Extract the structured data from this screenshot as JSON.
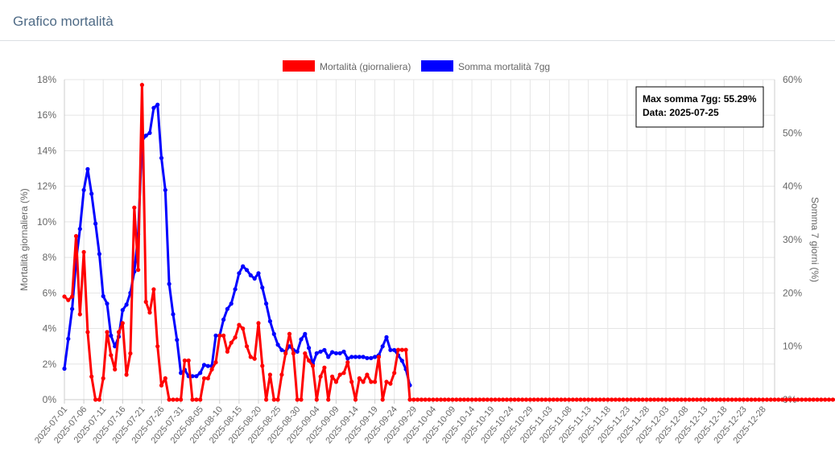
{
  "panel": {
    "title": "Grafico mortalità"
  },
  "chart_data": {
    "type": "line",
    "start_date": "2025-07-01",
    "end_date": "2025-12-31",
    "x_tick_labels": [
      "2025-07-01",
      "2025-07-06",
      "2025-07-11",
      "2025-07-16",
      "2025-07-21",
      "2025-07-26",
      "2025-07-31",
      "2025-08-05",
      "2025-08-10",
      "2025-08-15",
      "2025-08-20",
      "2025-08-25",
      "2025-08-30",
      "2025-09-04",
      "2025-09-09",
      "2025-09-14",
      "2025-09-19",
      "2025-09-24",
      "2025-09-29",
      "2025-10-04",
      "2025-10-09",
      "2025-10-14",
      "2025-10-19",
      "2025-10-24",
      "2025-10-29",
      "2025-11-03",
      "2025-11-08",
      "2025-11-13",
      "2025-11-18",
      "2025-11-23",
      "2025-11-28",
      "2025-12-03",
      "2025-12-08",
      "2025-12-13",
      "2025-12-18",
      "2025-12-23",
      "2025-12-28"
    ],
    "y_left": {
      "label": "Mortalità giornaliera (%)",
      "min": 0,
      "max": 18,
      "step": 2,
      "tick_suffix": "%"
    },
    "y_right": {
      "label": "Somma 7 giorni (%)",
      "min": 0,
      "max": 60,
      "step": 10,
      "tick_suffix": "%"
    },
    "grid": true,
    "legend_position": "top",
    "series": [
      {
        "name": "Mortalità (giornaliera)",
        "color": "#ff0000",
        "axis": "left",
        "values": [
          5.8,
          5.6,
          5.8,
          9.2,
          4.8,
          8.3,
          3.8,
          1.3,
          0,
          0,
          1.2,
          3.8,
          2.5,
          1.7,
          3.8,
          4.3,
          1.4,
          2.6,
          10.8,
          7.3,
          17.7,
          5.5,
          4.9,
          6.2,
          3.0,
          0.8,
          1.2,
          0,
          0,
          0,
          0,
          2.2,
          2.2,
          0,
          0,
          0,
          1.2,
          1.2,
          1.7,
          2.1,
          3.6,
          3.6,
          2.7,
          3.2,
          3.5,
          4.2,
          4.0,
          3.0,
          2.4,
          2.3,
          4.3,
          1.9,
          0,
          1.4,
          0,
          0,
          1.4,
          2.6,
          3.7,
          2.6,
          0,
          0,
          2.6,
          2.2,
          1.9,
          0,
          1.3,
          1.8,
          0,
          1.3,
          1.0,
          1.4,
          1.5,
          2.1,
          1.0,
          0,
          1.2,
          1.0,
          1.4,
          1.0,
          1.0,
          2.4,
          0,
          1.0,
          0.9,
          1.5,
          2.8,
          2.8,
          2.8,
          0,
          0,
          0,
          0,
          0,
          0,
          0,
          0,
          0,
          0,
          0,
          0,
          0,
          0,
          0,
          0,
          0,
          0,
          0,
          0,
          0,
          0,
          0,
          0,
          0,
          0,
          0,
          0,
          0,
          0,
          0,
          0,
          0,
          0,
          0,
          0,
          0,
          0,
          0,
          0,
          0,
          0,
          0,
          0,
          0,
          0,
          0,
          0,
          0,
          0,
          0,
          0,
          0,
          0,
          0,
          0,
          0,
          0,
          0,
          0,
          0,
          0,
          0,
          0,
          0,
          0,
          0,
          0,
          0,
          0,
          0,
          0,
          0,
          0,
          0,
          0,
          0,
          0,
          0,
          0,
          0,
          0,
          0,
          0,
          0,
          0,
          0,
          0,
          0,
          0,
          0,
          0,
          0,
          0,
          0,
          0,
          0,
          0,
          0,
          0,
          0,
          0,
          0,
          0,
          0,
          0,
          0,
          0,
          0,
          0,
          0
        ]
      },
      {
        "name": "Somma mortalità 7gg",
        "color": "#0000ff",
        "axis": "right",
        "values": [
          5.8,
          11.4,
          17.0,
          26.0,
          32.0,
          39.3,
          43.2,
          38.6,
          33.0,
          27.3,
          19.4,
          18.0,
          12.0,
          10.0,
          11.8,
          16.8,
          17.8,
          20.0,
          24.0,
          31.0,
          48.5,
          49.5,
          50.0,
          54.7,
          55.29,
          45.3,
          39.3,
          21.7,
          16.0,
          11.2,
          5.0,
          5.6,
          4.4,
          4.4,
          4.4,
          5.0,
          6.5,
          6.3,
          6.3,
          12.0,
          12.0,
          15.0,
          17.0,
          18.0,
          20.7,
          23.7,
          25.0,
          24.3,
          23.3,
          22.7,
          23.7,
          21.0,
          18.0,
          14.7,
          12.3,
          10.3,
          9.3,
          9.0,
          10.0,
          9.3,
          9.0,
          11.3,
          12.3,
          9.7,
          6.7,
          8.7,
          9.0,
          9.3,
          8.0,
          8.9,
          8.7,
          8.7,
          9.0,
          7.7,
          8.0,
          8.0,
          8.0,
          8.0,
          7.8,
          7.8,
          8.0,
          8.3,
          10.0,
          11.7,
          9.3,
          9.3,
          8.3,
          7.3,
          5.7,
          2.7,
          0,
          0,
          0,
          0,
          0,
          0,
          0,
          0,
          0,
          0,
          0,
          0,
          0,
          0,
          0,
          0,
          0,
          0,
          0,
          0,
          0,
          0,
          0,
          0,
          0,
          0,
          0,
          0,
          0,
          0,
          0,
          0,
          0,
          0,
          0,
          0,
          0,
          0,
          0,
          0,
          0,
          0,
          0,
          0,
          0,
          0,
          0,
          0,
          0,
          0,
          0,
          0,
          0,
          0,
          0,
          0,
          0,
          0,
          0,
          0,
          0,
          0,
          0,
          0,
          0,
          0,
          0,
          0,
          0,
          0,
          0,
          0,
          0,
          0,
          0,
          0,
          0,
          0,
          0,
          0,
          0,
          0,
          0,
          0,
          0,
          0,
          0,
          0,
          0,
          0,
          0,
          0,
          0,
          0,
          0,
          0,
          0,
          0,
          0,
          0,
          0,
          0,
          0,
          0,
          0,
          0
        ],
        "values_until_index": 89
      }
    ],
    "annotation": {
      "line1": "Max somma 7gg: 55.29%",
      "line2": "Data: 2025-07-25"
    }
  }
}
